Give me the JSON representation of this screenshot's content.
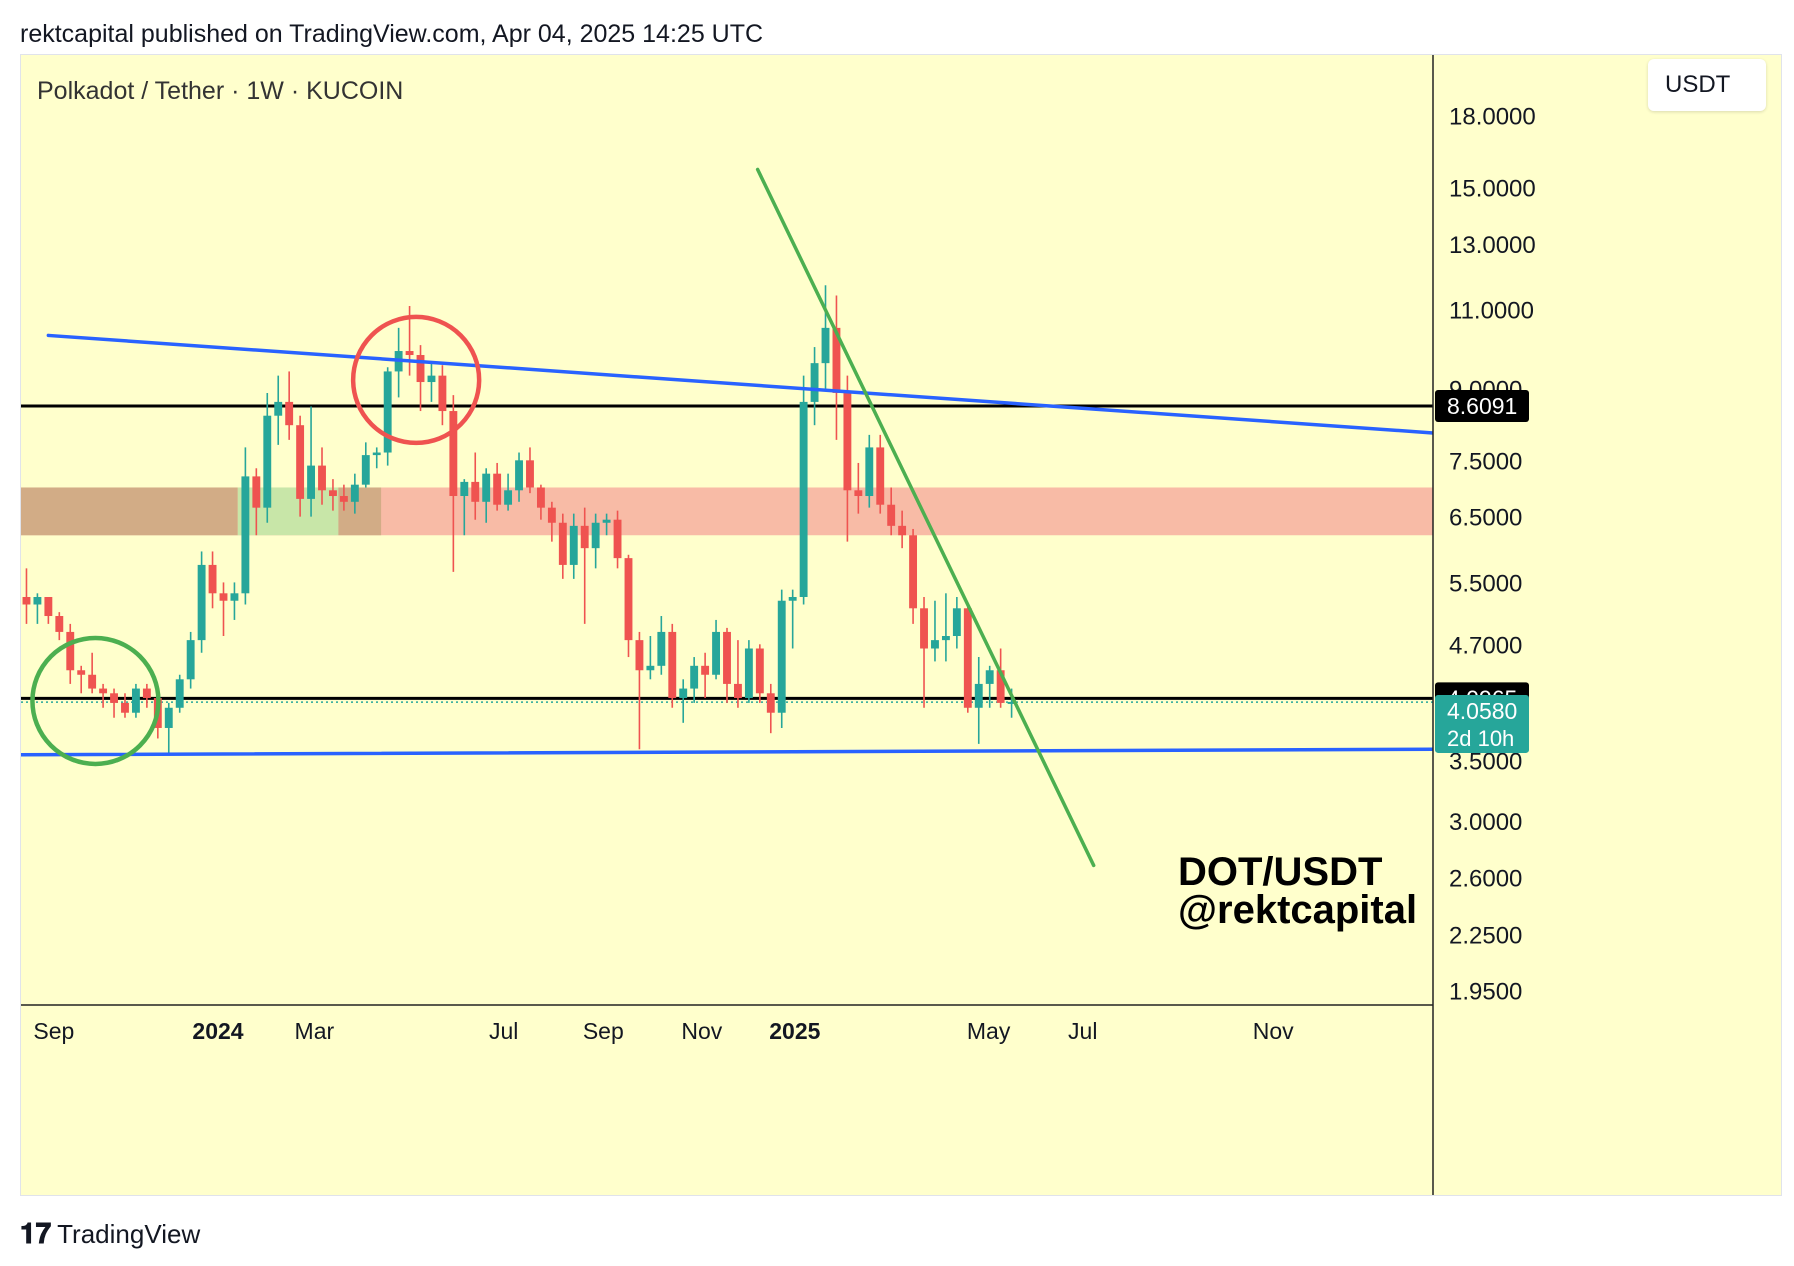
{
  "header": {
    "text": "rektcapital published on TradingView.com, Apr 04, 2025 14:25 UTC"
  },
  "chart_header": {
    "symbol": "Polkadot / Tether · 1W · KUCOIN",
    "currency": "USDT"
  },
  "footer": {
    "brand": "TradingView"
  },
  "chart_data": {
    "type": "candlestick",
    "scale": "log",
    "ylim": [
      1.88,
      21.0
    ],
    "y_ticks": [
      "18.0000",
      "15.0000",
      "13.0000",
      "11.0000",
      "9.0000",
      "7.5000",
      "6.5000",
      "5.5000",
      "4.7000",
      "3.5000",
      "3.0000",
      "2.6000",
      "2.2500",
      "1.9500"
    ],
    "x_ticks": [
      {
        "label": "Sep",
        "week": 2.5,
        "bold": false
      },
      {
        "label": "2024",
        "week": 17.5,
        "bold": true
      },
      {
        "label": "Mar",
        "week": 26.3,
        "bold": false
      },
      {
        "label": "Jul",
        "week": 43.6,
        "bold": false
      },
      {
        "label": "Sep",
        "week": 52.7,
        "bold": false
      },
      {
        "label": "Nov",
        "week": 61.7,
        "bold": false
      },
      {
        "label": "2025",
        "week": 70.2,
        "bold": true
      },
      {
        "label": "May",
        "week": 87.9,
        "bold": false
      },
      {
        "label": "Jul",
        "week": 96.5,
        "bold": false
      },
      {
        "label": "Nov",
        "week": 113.9,
        "bold": false
      }
    ],
    "x_range": [
      -0.5,
      128.5
    ],
    "candles": [
      {
        "o": 5.3,
        "h": 5.7,
        "l": 4.95,
        "c": 5.2
      },
      {
        "o": 5.2,
        "h": 5.35,
        "l": 4.95,
        "c": 5.3
      },
      {
        "o": 5.3,
        "h": 5.3,
        "l": 4.95,
        "c": 5.05
      },
      {
        "o": 5.05,
        "h": 5.1,
        "l": 4.75,
        "c": 4.85
      },
      {
        "o": 4.85,
        "h": 4.95,
        "l": 4.25,
        "c": 4.4
      },
      {
        "o": 4.4,
        "h": 4.45,
        "l": 4.15,
        "c": 4.35
      },
      {
        "o": 4.35,
        "h": 4.6,
        "l": 4.15,
        "c": 4.2
      },
      {
        "o": 4.2,
        "h": 4.25,
        "l": 4.0,
        "c": 4.15
      },
      {
        "o": 4.15,
        "h": 4.2,
        "l": 3.9,
        "c": 4.05
      },
      {
        "o": 4.05,
        "h": 4.15,
        "l": 3.9,
        "c": 3.95
      },
      {
        "o": 3.95,
        "h": 4.25,
        "l": 3.9,
        "c": 4.2
      },
      {
        "o": 4.2,
        "h": 4.25,
        "l": 4.0,
        "c": 4.1
      },
      {
        "o": 4.1,
        "h": 4.15,
        "l": 3.7,
        "c": 3.8
      },
      {
        "o": 3.8,
        "h": 4.05,
        "l": 3.55,
        "c": 4.0
      },
      {
        "o": 4.0,
        "h": 4.35,
        "l": 3.95,
        "c": 4.3
      },
      {
        "o": 4.3,
        "h": 4.85,
        "l": 4.2,
        "c": 4.75
      },
      {
        "o": 4.75,
        "h": 5.95,
        "l": 4.6,
        "c": 5.75
      },
      {
        "o": 5.75,
        "h": 5.95,
        "l": 5.15,
        "c": 5.35
      },
      {
        "o": 5.35,
        "h": 5.5,
        "l": 4.8,
        "c": 5.25
      },
      {
        "o": 5.25,
        "h": 5.5,
        "l": 5.0,
        "c": 5.35
      },
      {
        "o": 5.35,
        "h": 7.75,
        "l": 5.2,
        "c": 7.2
      },
      {
        "o": 7.2,
        "h": 7.35,
        "l": 6.2,
        "c": 6.65
      },
      {
        "o": 6.65,
        "h": 8.9,
        "l": 6.4,
        "c": 8.4
      },
      {
        "o": 8.4,
        "h": 9.3,
        "l": 7.8,
        "c": 8.7
      },
      {
        "o": 8.7,
        "h": 9.4,
        "l": 7.9,
        "c": 8.2
      },
      {
        "o": 8.2,
        "h": 8.4,
        "l": 6.5,
        "c": 6.8
      },
      {
        "o": 6.8,
        "h": 8.6,
        "l": 6.5,
        "c": 7.4
      },
      {
        "o": 7.4,
        "h": 7.75,
        "l": 6.7,
        "c": 6.95
      },
      {
        "o": 6.95,
        "h": 7.15,
        "l": 6.6,
        "c": 6.85
      },
      {
        "o": 6.85,
        "h": 7.05,
        "l": 6.6,
        "c": 6.75
      },
      {
        "o": 6.75,
        "h": 7.25,
        "l": 6.55,
        "c": 7.05
      },
      {
        "o": 7.05,
        "h": 7.85,
        "l": 7.0,
        "c": 7.6
      },
      {
        "o": 7.6,
        "h": 7.75,
        "l": 7.35,
        "c": 7.65
      },
      {
        "o": 7.65,
        "h": 9.5,
        "l": 7.4,
        "c": 9.4
      },
      {
        "o": 9.4,
        "h": 10.5,
        "l": 8.8,
        "c": 9.9
      },
      {
        "o": 9.9,
        "h": 11.1,
        "l": 9.3,
        "c": 9.8
      },
      {
        "o": 9.8,
        "h": 10.05,
        "l": 8.5,
        "c": 9.15
      },
      {
        "o": 9.15,
        "h": 9.6,
        "l": 8.7,
        "c": 9.3
      },
      {
        "o": 9.3,
        "h": 9.55,
        "l": 8.2,
        "c": 8.5
      },
      {
        "o": 8.5,
        "h": 8.85,
        "l": 5.65,
        "c": 6.85
      },
      {
        "o": 6.85,
        "h": 7.15,
        "l": 6.2,
        "c": 7.1
      },
      {
        "o": 7.1,
        "h": 7.65,
        "l": 6.45,
        "c": 6.75
      },
      {
        "o": 6.75,
        "h": 7.35,
        "l": 6.4,
        "c": 7.25
      },
      {
        "o": 7.25,
        "h": 7.45,
        "l": 6.6,
        "c": 6.7
      },
      {
        "o": 6.7,
        "h": 7.25,
        "l": 6.6,
        "c": 6.95
      },
      {
        "o": 6.95,
        "h": 7.65,
        "l": 6.75,
        "c": 7.5
      },
      {
        "o": 7.5,
        "h": 7.75,
        "l": 6.9,
        "c": 7.0
      },
      {
        "o": 7.0,
        "h": 7.05,
        "l": 6.45,
        "c": 6.65
      },
      {
        "o": 6.65,
        "h": 6.75,
        "l": 6.1,
        "c": 6.4
      },
      {
        "o": 6.4,
        "h": 6.55,
        "l": 5.55,
        "c": 5.75
      },
      {
        "o": 5.75,
        "h": 6.55,
        "l": 5.55,
        "c": 6.35
      },
      {
        "o": 6.35,
        "h": 6.65,
        "l": 4.95,
        "c": 6.0
      },
      {
        "o": 6.0,
        "h": 6.55,
        "l": 5.7,
        "c": 6.4
      },
      {
        "o": 6.4,
        "h": 6.55,
        "l": 6.2,
        "c": 6.45
      },
      {
        "o": 6.45,
        "h": 6.6,
        "l": 5.7,
        "c": 5.85
      },
      {
        "o": 5.85,
        "h": 5.9,
        "l": 4.55,
        "c": 4.75
      },
      {
        "o": 4.75,
        "h": 4.85,
        "l": 3.6,
        "c": 4.4
      },
      {
        "o": 4.4,
        "h": 4.8,
        "l": 4.3,
        "c": 4.45
      },
      {
        "o": 4.45,
        "h": 5.05,
        "l": 4.35,
        "c": 4.85
      },
      {
        "o": 4.85,
        "h": 4.95,
        "l": 4.0,
        "c": 4.1
      },
      {
        "o": 4.1,
        "h": 4.3,
        "l": 3.85,
        "c": 4.2
      },
      {
        "o": 4.2,
        "h": 4.55,
        "l": 4.05,
        "c": 4.45
      },
      {
        "o": 4.45,
        "h": 4.6,
        "l": 4.1,
        "c": 4.35
      },
      {
        "o": 4.35,
        "h": 5.0,
        "l": 4.3,
        "c": 4.85
      },
      {
        "o": 4.85,
        "h": 4.9,
        "l": 4.05,
        "c": 4.25
      },
      {
        "o": 4.25,
        "h": 4.75,
        "l": 4.0,
        "c": 4.1
      },
      {
        "o": 4.1,
        "h": 4.75,
        "l": 4.05,
        "c": 4.65
      },
      {
        "o": 4.65,
        "h": 4.7,
        "l": 4.05,
        "c": 4.15
      },
      {
        "o": 4.15,
        "h": 4.25,
        "l": 3.75,
        "c": 3.95
      },
      {
        "o": 3.95,
        "h": 5.4,
        "l": 3.8,
        "c": 5.25
      },
      {
        "o": 5.25,
        "h": 5.4,
        "l": 4.65,
        "c": 5.3
      },
      {
        "o": 5.3,
        "h": 9.3,
        "l": 5.2,
        "c": 8.7
      },
      {
        "o": 8.7,
        "h": 10.0,
        "l": 8.2,
        "c": 9.6
      },
      {
        "o": 9.6,
        "h": 11.7,
        "l": 9.0,
        "c": 10.5
      },
      {
        "o": 10.5,
        "h": 11.4,
        "l": 7.9,
        "c": 8.9
      },
      {
        "o": 8.9,
        "h": 9.3,
        "l": 6.1,
        "c": 6.95
      },
      {
        "o": 6.95,
        "h": 7.45,
        "l": 6.55,
        "c": 6.85
      },
      {
        "o": 6.85,
        "h": 8.0,
        "l": 6.65,
        "c": 7.75
      },
      {
        "o": 7.75,
        "h": 8.0,
        "l": 6.55,
        "c": 6.7
      },
      {
        "o": 6.7,
        "h": 7.0,
        "l": 6.2,
        "c": 6.35
      },
      {
        "o": 6.35,
        "h": 6.6,
        "l": 6.0,
        "c": 6.2
      },
      {
        "o": 6.2,
        "h": 6.3,
        "l": 4.95,
        "c": 5.15
      },
      {
        "o": 5.15,
        "h": 5.3,
        "l": 4.0,
        "c": 4.65
      },
      {
        "o": 4.65,
        "h": 5.25,
        "l": 4.5,
        "c": 4.75
      },
      {
        "o": 4.75,
        "h": 5.35,
        "l": 4.5,
        "c": 4.8
      },
      {
        "o": 4.8,
        "h": 5.3,
        "l": 4.65,
        "c": 5.15
      },
      {
        "o": 5.15,
        "h": 5.2,
        "l": 3.95,
        "c": 4.0
      },
      {
        "o": 4.0,
        "h": 4.55,
        "l": 3.65,
        "c": 4.25
      },
      {
        "o": 4.25,
        "h": 4.45,
        "l": 4.0,
        "c": 4.4
      },
      {
        "o": 4.4,
        "h": 4.65,
        "l": 4.0,
        "c": 4.05
      },
      {
        "o": 4.05,
        "h": 4.2,
        "l": 3.9,
        "c": 4.06
      }
    ],
    "horizontal_levels": [
      {
        "price": 8.6091,
        "label": "8.6091"
      },
      {
        "price": 4.0965,
        "label": "4.0965"
      }
    ],
    "last_price": {
      "price": 4.058,
      "label": "4.0580",
      "countdown": "2d 10h"
    },
    "zones": [
      {
        "name": "resistance-zone",
        "low": 6.2,
        "high": 7.0,
        "color": "#f8bba6",
        "from_week": -0.5,
        "to_week": 128.5
      },
      {
        "name": "tan-zone-a",
        "low": 6.2,
        "high": 7.0,
        "color": "#d2ac86",
        "from_week": -0.5,
        "to_week": 19.3
      },
      {
        "name": "green-zone",
        "low": 6.2,
        "high": 7.0,
        "color": "#c8e6a8",
        "from_week": 19.3,
        "to_week": 28.5
      },
      {
        "name": "tan-zone-b",
        "low": 6.2,
        "high": 7.0,
        "color": "#d2ac86",
        "from_week": 28.5,
        "to_week": 32.4
      }
    ],
    "trendlines": [
      {
        "name": "upper-channel",
        "color": "#2962ff",
        "p1": {
          "week": 2.0,
          "price": 10.3
        },
        "p2": {
          "week": 128.5,
          "price": 8.04
        }
      },
      {
        "name": "lower-channel",
        "color": "#2962ff",
        "p1": {
          "week": -0.5,
          "price": 3.55
        },
        "p2": {
          "week": 128.5,
          "price": 3.6
        }
      },
      {
        "name": "descending-trendline",
        "color": "#4caf50",
        "p1": {
          "week": 66.8,
          "price": 15.7
        },
        "p2": {
          "week": 97.5,
          "price": 2.68
        }
      }
    ],
    "annotations": [
      {
        "name": "bottom-circle",
        "shape": "circle",
        "color": "#4caf50",
        "week": 6.3,
        "price": 4.07
      },
      {
        "name": "top-circle",
        "shape": "circle",
        "color": "#ef5350",
        "week": 35.6,
        "price": 9.2
      }
    ],
    "watermark": [
      "DOT/USDT",
      "@rektcapital"
    ]
  }
}
